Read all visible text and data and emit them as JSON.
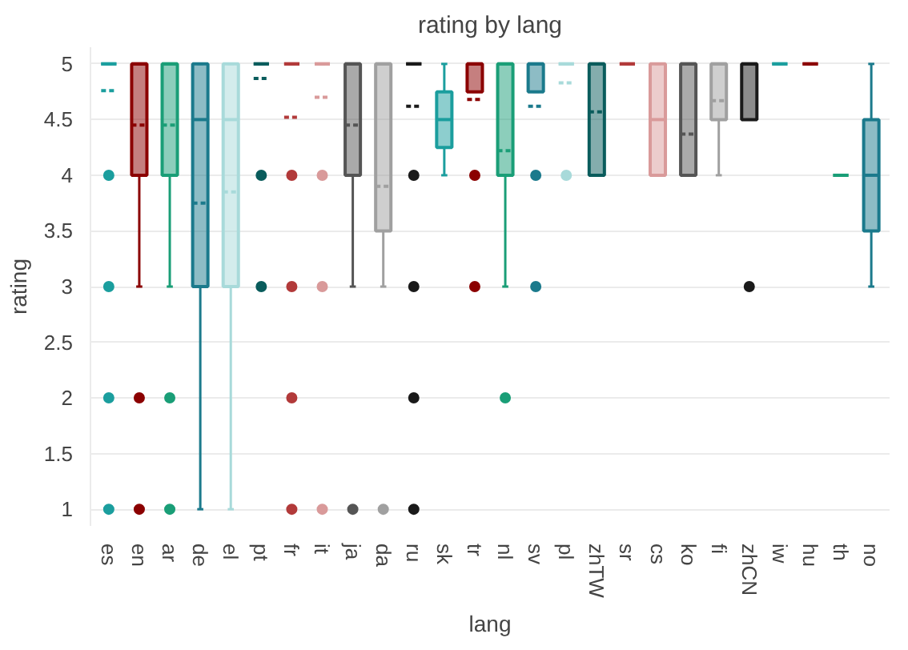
{
  "chart_data": {
    "type": "box",
    "title": "rating by lang",
    "xlabel": "lang",
    "ylabel": "rating",
    "categories": [
      "es",
      "en",
      "ar",
      "de",
      "el",
      "pt",
      "fr",
      "it",
      "ja",
      "da",
      "ru",
      "sk",
      "tr",
      "nl",
      "sv",
      "pl",
      "zhTW",
      "sr",
      "cs",
      "ko",
      "fi",
      "zhCN",
      "iw",
      "hu",
      "th",
      "no"
    ],
    "colors": [
      "#1b9e9e",
      "#8b0000",
      "#1a9e77",
      "#1b7a8c",
      "#a8dada",
      "#0a5c5c",
      "#b23a3a",
      "#d99a9a",
      "#555555",
      "#a0a0a0",
      "#1a1a1a",
      "#1b9e9e",
      "#8b0000",
      "#1a9e77",
      "#1b7a8c",
      "#a8dada",
      "#0a5c5c",
      "#b23a3a",
      "#d99a9a",
      "#555555",
      "#a0a0a0",
      "#1a1a1a",
      "#1b9e9e",
      "#8b0000",
      "#1a9e77",
      "#1b7a8c"
    ],
    "boxes": [
      {
        "low": 5,
        "q1": 5,
        "median": 5,
        "q3": 5,
        "high": 5,
        "mean": 4.76,
        "outliers": [
          4,
          3,
          2,
          1
        ]
      },
      {
        "low": 3,
        "q1": 4,
        "median": 5,
        "q3": 5,
        "high": 5,
        "mean": 4.45,
        "outliers": [
          2,
          1
        ]
      },
      {
        "low": 3,
        "q1": 4,
        "median": 5,
        "q3": 5,
        "high": 5,
        "mean": 4.45,
        "outliers": [
          2,
          1
        ]
      },
      {
        "low": 1,
        "q1": 3,
        "median": 4.5,
        "q3": 5,
        "high": 5,
        "mean": 3.75
      },
      {
        "low": 1,
        "q1": 3,
        "median": 4.5,
        "q3": 5,
        "high": 5,
        "mean": 3.85
      },
      {
        "low": 5,
        "q1": 5,
        "median": 5,
        "q3": 5,
        "high": 5,
        "mean": 4.87,
        "outliers": [
          4,
          3
        ]
      },
      {
        "low": 5,
        "q1": 5,
        "median": 5,
        "q3": 5,
        "high": 5,
        "mean": 4.52,
        "outliers": [
          4,
          3,
          2,
          1
        ]
      },
      {
        "low": 5,
        "q1": 5,
        "median": 5,
        "q3": 5,
        "high": 5,
        "mean": 4.7,
        "outliers": [
          4,
          3,
          1
        ]
      },
      {
        "low": 3,
        "q1": 4,
        "median": 5,
        "q3": 5,
        "high": 5,
        "mean": 4.45,
        "outliers": [
          1
        ]
      },
      {
        "low": 3,
        "q1": 3.5,
        "median": 5,
        "q3": 5,
        "high": 5,
        "mean": 3.9,
        "outliers": [
          1
        ]
      },
      {
        "low": 5,
        "q1": 5,
        "median": 5,
        "q3": 5,
        "high": 5,
        "mean": 4.62,
        "outliers": [
          4,
          3,
          2,
          1
        ]
      },
      {
        "low": 4,
        "q1": 4.25,
        "median": 4.5,
        "q3": 4.75,
        "high": 5
      },
      {
        "low": 4.75,
        "q1": 4.75,
        "median": 5,
        "q3": 5,
        "high": 5,
        "mean": 4.68,
        "outliers": [
          4,
          3
        ]
      },
      {
        "low": 3,
        "q1": 4,
        "median": 5,
        "q3": 5,
        "high": 5,
        "mean": 4.22,
        "outliers": [
          2
        ]
      },
      {
        "low": 4.75,
        "q1": 4.75,
        "median": 5,
        "q3": 5,
        "high": 5,
        "mean": 4.62,
        "outliers": [
          4,
          3
        ]
      },
      {
        "low": 5,
        "q1": 5,
        "median": 5,
        "q3": 5,
        "high": 5,
        "mean": 4.83,
        "outliers": [
          4
        ]
      },
      {
        "low": 4,
        "q1": 4,
        "median": 5,
        "q3": 5,
        "high": 5,
        "mean": 4.57
      },
      {
        "low": 5,
        "q1": 5,
        "median": 5,
        "q3": 5,
        "high": 5
      },
      {
        "low": 4,
        "q1": 4,
        "median": 4.5,
        "q3": 5,
        "high": 5
      },
      {
        "low": 4,
        "q1": 4,
        "median": 5,
        "q3": 5,
        "high": 5,
        "mean": 4.37
      },
      {
        "low": 4,
        "q1": 4.5,
        "median": 5,
        "q3": 5,
        "high": 5,
        "mean": 4.67
      },
      {
        "low": 4.5,
        "q1": 4.5,
        "median": 5,
        "q3": 5,
        "high": 5,
        "outliers": [
          3
        ]
      },
      {
        "low": 5,
        "q1": 5,
        "median": 5,
        "q3": 5,
        "high": 5
      },
      {
        "low": 5,
        "q1": 5,
        "median": 5,
        "q3": 5,
        "high": 5
      },
      {
        "low": 4,
        "q1": 4,
        "median": 4,
        "q3": 4,
        "high": 4
      },
      {
        "low": 3,
        "q1": 3.5,
        "median": 4,
        "q3": 4.5,
        "high": 5
      }
    ],
    "ylim": [
      0.85,
      5.15
    ],
    "yticks": [
      1,
      1.5,
      2,
      2.5,
      3,
      3.5,
      4,
      4.5,
      5
    ],
    "grid": "y"
  }
}
